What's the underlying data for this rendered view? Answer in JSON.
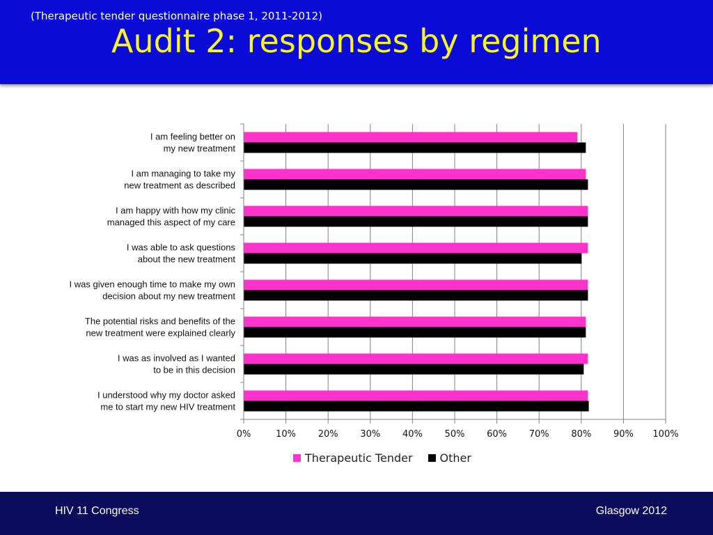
{
  "header": {
    "subtitle": "(Therapeutic tender questionnaire phase 1, 2011-2012)",
    "title": "Audit 2: responses by regimen"
  },
  "footer": {
    "left": "HIV 11 Congress",
    "right": "Glasgow 2012"
  },
  "colors": {
    "header_bg": "#0b0bd8",
    "title": "#f7f52a",
    "footer_bg": "#0c0c5c",
    "therapeutic_tender": "#ff33cc",
    "other": "#000000"
  },
  "chart_data": {
    "type": "bar",
    "orientation": "horizontal",
    "categories": [
      [
        "I am feeling better on",
        "my new treatment"
      ],
      [
        "I am managing to take my",
        "new treatment as described"
      ],
      [
        "I am happy with how my clinic",
        "managed this aspect of my care"
      ],
      [
        "I was able to ask questions",
        "about the new treatment"
      ],
      [
        "I was given enough time to make my own",
        "decision about my new treatment"
      ],
      [
        "The potential risks and benefits of the",
        "new treatment were explained clearly"
      ],
      [
        "I was as involved as I wanted",
        "to be in this decision"
      ],
      [
        "I understood why my doctor asked",
        "me to start my new HIV treatment"
      ]
    ],
    "series": [
      {
        "name": "Therapeutic Tender",
        "color": "#ff33cc",
        "values": [
          79,
          81,
          81.5,
          81.5,
          81.5,
          81,
          81.5,
          81.5
        ]
      },
      {
        "name": "Other",
        "color": "#000000",
        "values": [
          81,
          81.5,
          81.5,
          80,
          81.5,
          81,
          80.5,
          81.7
        ]
      }
    ],
    "xlim": [
      0,
      100
    ],
    "xticks": [
      "0%",
      "10%",
      "20%",
      "30%",
      "40%",
      "50%",
      "60%",
      "70%",
      "80%",
      "90%",
      "100%"
    ],
    "grid": true,
    "legend": "bottom"
  }
}
